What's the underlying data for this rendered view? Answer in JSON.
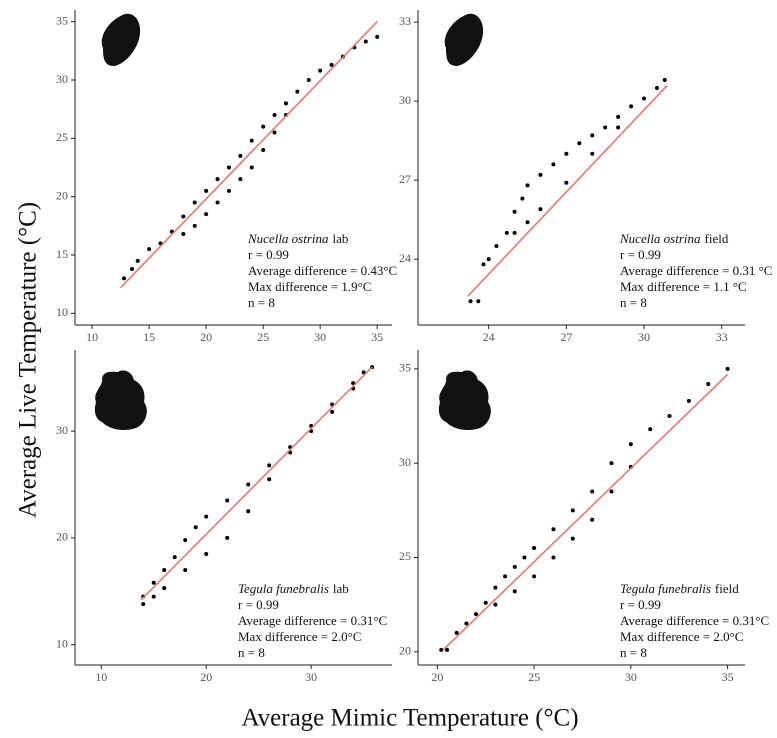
{
  "ylabel": "Average Live Temperature (°C)",
  "xlabel": "Average Mimic Temperature (°C)",
  "chart_data": [
    {
      "type": "scatter",
      "species": "Nucella ostrina",
      "condition": "lab",
      "annotations": [
        "r = 0.99",
        "Average difference = 0.43°C",
        "Max difference = 1.9°C",
        "n = 8"
      ],
      "x": [
        12.8,
        13.5,
        14,
        15,
        16,
        17,
        18,
        19,
        20,
        21,
        22,
        23,
        24,
        25,
        26,
        27,
        28,
        29,
        30,
        31,
        32,
        33,
        34,
        35,
        18,
        19,
        20,
        21,
        22,
        23,
        24,
        25,
        26,
        27
      ],
      "y": [
        13,
        13.8,
        14.5,
        15.5,
        16,
        17,
        18.3,
        19.5,
        20.5,
        21.5,
        22.5,
        23.5,
        24.8,
        26,
        27,
        28,
        29,
        30,
        30.8,
        31.3,
        32,
        32.8,
        33.3,
        33.7,
        16.8,
        17.5,
        18.5,
        19.5,
        20.5,
        21.5,
        22.5,
        24,
        25.5,
        27
      ],
      "color": "#000000",
      "fit_line": {
        "x": [
          12.5,
          35
        ],
        "y": [
          12.2,
          35
        ]
      },
      "fit_color": "#e07b72",
      "xlim": [
        8.5,
        36.3
      ],
      "ylim": [
        9,
        36
      ],
      "xticks": [
        10,
        15,
        20,
        25,
        30,
        35
      ],
      "yticks": [
        10,
        15,
        20,
        25,
        30,
        35
      ]
    },
    {
      "type": "scatter",
      "species": "Nucella ostrina",
      "condition": "field",
      "annotations": [
        "r = 0.99",
        "Average difference = 0.31 °C",
        "Max difference = 1.1 °C",
        "n = 8"
      ],
      "x": [
        23.3,
        23.6,
        23.8,
        24,
        24.3,
        24.7,
        25,
        25.3,
        25.5,
        26,
        26.5,
        27,
        27.5,
        28,
        28.5,
        29,
        29.5,
        30,
        30.5,
        30.8,
        25,
        25.5,
        26,
        27,
        28,
        29
      ],
      "y": [
        22.4,
        22.4,
        23.8,
        24,
        24.5,
        25,
        25.8,
        26.3,
        26.8,
        27.2,
        27.6,
        28,
        28.4,
        28.7,
        29,
        29.4,
        29.8,
        30.1,
        30.5,
        30.8,
        25,
        25.4,
        25.9,
        26.9,
        28,
        29
      ],
      "color": "#000000",
      "fit_line": {
        "x": [
          23.2,
          30.9
        ],
        "y": [
          22.6,
          30.6
        ]
      },
      "fit_color": "#e07b72",
      "xlim": [
        21.27,
        33.9
      ],
      "ylim": [
        21.5,
        33.46
      ],
      "xticks": [
        24,
        27,
        30,
        33
      ],
      "yticks": [
        24,
        27,
        30,
        33
      ]
    },
    {
      "type": "scatter",
      "species": "Tegula funebralis",
      "condition": "lab",
      "annotations": [
        "r = 0.99",
        "Average difference = 0.31°C",
        "Max difference = 2.0°C",
        "n = 8"
      ],
      "x": [
        14,
        15,
        16,
        17,
        18,
        19,
        20,
        22,
        24,
        26,
        28,
        30,
        32,
        34,
        35,
        35.8,
        14,
        15,
        16,
        18,
        20,
        22,
        24,
        26,
        28,
        30,
        32,
        34
      ],
      "y": [
        14.5,
        15.8,
        17,
        18.2,
        19.8,
        21,
        22,
        23.5,
        25,
        26.8,
        28.5,
        30,
        31.8,
        34,
        35.5,
        36,
        13.8,
        14.5,
        15.3,
        17,
        18.5,
        20,
        22.5,
        25.5,
        28,
        30.5,
        32.5,
        34.5
      ],
      "color": "#000000",
      "fit_line": {
        "x": [
          13.8,
          35.8
        ],
        "y": [
          14.2,
          36
        ]
      },
      "fit_color": "#e07b72",
      "xlim": [
        7.5,
        37.7
      ],
      "ylim": [
        8.1,
        37.6
      ],
      "xticks": [
        10,
        20,
        30
      ],
      "yticks": [
        10,
        20,
        30
      ]
    },
    {
      "type": "scatter",
      "species": "Tegula funebralis",
      "condition": "field",
      "annotations": [
        "r = 0.99",
        "Average difference = 0.31°C",
        "Max difference = 2.0°C",
        "n = 8"
      ],
      "x": [
        20.2,
        20.5,
        21,
        21.5,
        22,
        22.5,
        23,
        23.5,
        24,
        24.5,
        25,
        26,
        27,
        28,
        29,
        30,
        31,
        32,
        33,
        34,
        35,
        23,
        24,
        25,
        26,
        27,
        28,
        29,
        30
      ],
      "y": [
        20.1,
        20.1,
        21,
        21.5,
        22,
        22.6,
        23.4,
        24,
        24.5,
        25,
        25.5,
        26.5,
        27.5,
        28.5,
        30,
        31,
        31.8,
        32.5,
        33.3,
        34.2,
        35,
        22.5,
        23.2,
        24,
        25,
        26,
        27,
        28.5,
        29.8
      ],
      "color": "#000000",
      "fit_line": {
        "x": [
          20.3,
          35
        ],
        "y": [
          20.1,
          34.7
        ]
      },
      "fit_color": "#e07b72",
      "xlim": [
        19,
        35.9
      ],
      "ylim": [
        19.3,
        36
      ],
      "xticks": [
        20,
        25,
        30,
        35
      ],
      "yticks": [
        20,
        25,
        30,
        35
      ]
    }
  ]
}
